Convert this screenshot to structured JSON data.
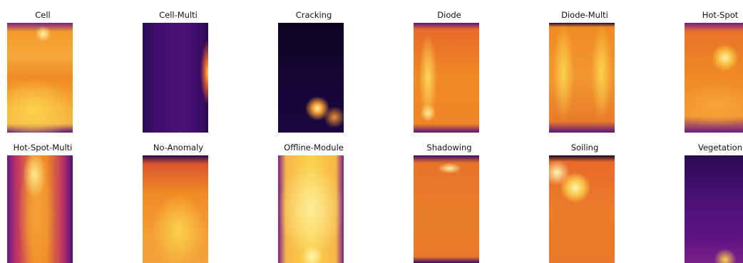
{
  "colors": {
    "dark": "#12062b",
    "purple": "#4b1277",
    "magenta": "#b72f6a",
    "orange": "#f08a24",
    "yellow": "#fbd24b",
    "pale": "#fff1a6"
  },
  "panels": [
    {
      "title": "Cell",
      "heat": "high",
      "hotspots": [
        "top-center"
      ]
    },
    {
      "title": "Cell-Multi",
      "heat": "low",
      "hotspots": [
        "right-edge"
      ]
    },
    {
      "title": "Cracking",
      "heat": "very-low",
      "hotspots": [
        "bottom-center",
        "bottom-right"
      ]
    },
    {
      "title": "Diode",
      "heat": "high",
      "hotspots": [
        "left-column"
      ]
    },
    {
      "title": "Diode-Multi",
      "heat": "high",
      "hotspots": [
        "left-column",
        "right-column"
      ]
    },
    {
      "title": "Hot-Spot",
      "heat": "high",
      "hotspots": [
        "upper-right"
      ]
    },
    {
      "title": "Hot-Spot-Multi",
      "heat": "high",
      "hotspots": [
        "top-center"
      ]
    },
    {
      "title": "No-Anomaly",
      "heat": "high",
      "hotspots": []
    },
    {
      "title": "Offline-Module",
      "heat": "very-high",
      "hotspots": [
        "bottom-center"
      ]
    },
    {
      "title": "Shadowing",
      "heat": "medium",
      "hotspots": [
        "top-right"
      ]
    },
    {
      "title": "Soiling",
      "heat": "medium",
      "hotspots": [
        "top-left",
        "upper-center"
      ]
    },
    {
      "title": "Vegetation",
      "heat": "low",
      "hotspots": [
        "bottom-right"
      ]
    }
  ]
}
